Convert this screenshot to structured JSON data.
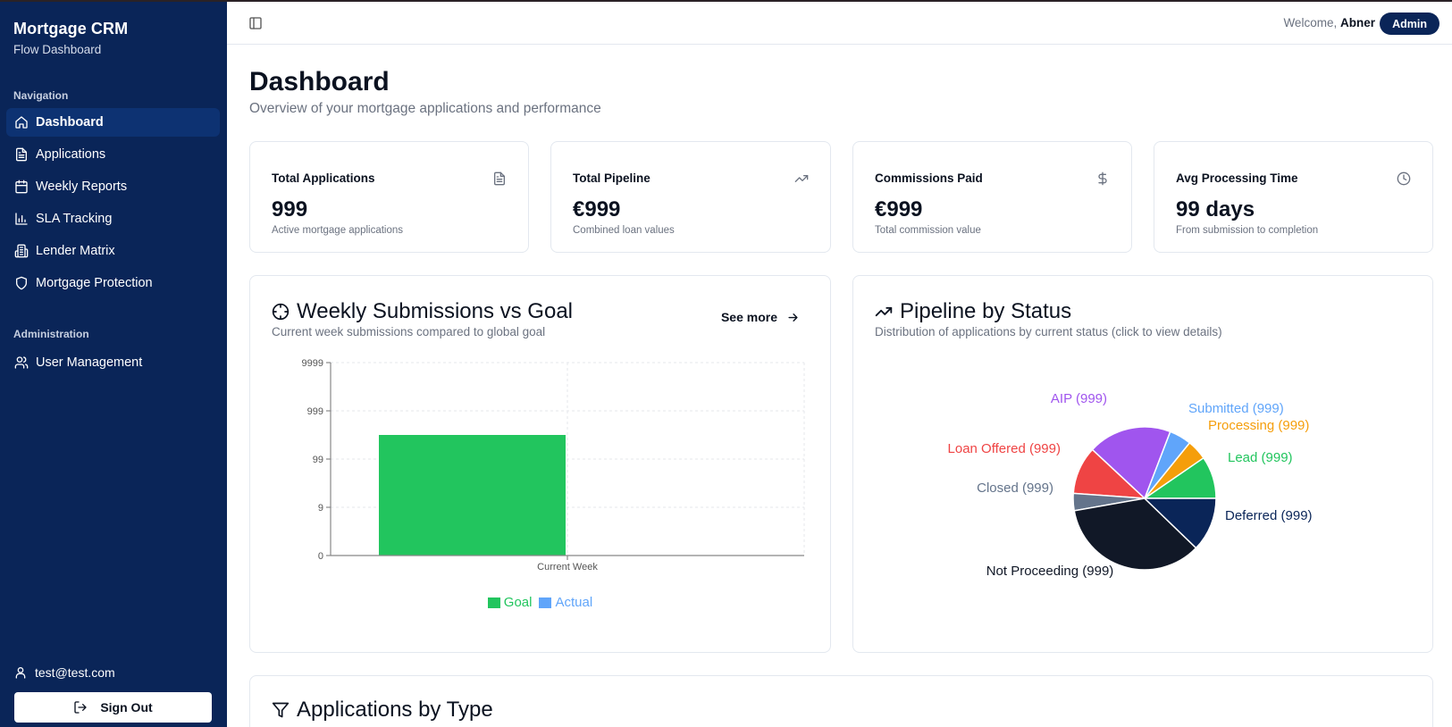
{
  "app": {
    "title": "Mortgage CRM",
    "subtitle": "Flow Dashboard"
  },
  "sidebar": {
    "nav_label": "Navigation",
    "items": [
      {
        "label": "Dashboard",
        "icon": "home-icon",
        "active": true
      },
      {
        "label": "Applications",
        "icon": "file-text-icon"
      },
      {
        "label": "Weekly Reports",
        "icon": "calendar-icon"
      },
      {
        "label": "SLA Tracking",
        "icon": "bar-chart-icon"
      },
      {
        "label": "Lender Matrix",
        "icon": "building-icon"
      },
      {
        "label": "Mortgage Protection",
        "icon": "shield-icon"
      }
    ],
    "admin_label": "Administration",
    "admin_items": [
      {
        "label": "User Management",
        "icon": "users-icon"
      }
    ],
    "user_email": "test@test.com",
    "sign_out_label": "Sign Out"
  },
  "header": {
    "welcome_prefix": "Welcome,",
    "user_name": "Abner",
    "role_badge": "Admin"
  },
  "page": {
    "title": "Dashboard",
    "subtitle": "Overview of your mortgage applications and performance"
  },
  "stats": [
    {
      "title": "Total Applications",
      "value": "999",
      "desc": "Active mortgage applications",
      "icon": "file-text-icon"
    },
    {
      "title": "Total Pipeline",
      "value": "€999",
      "desc": "Combined loan values",
      "icon": "trending-up-icon"
    },
    {
      "title": "Commissions Paid",
      "value": "€999",
      "desc": "Total commission value",
      "icon": "dollar-icon"
    },
    {
      "title": "Avg Processing Time",
      "value": "99 days",
      "desc": "From submission to completion",
      "icon": "clock-icon"
    }
  ],
  "weekly_card": {
    "title": "Weekly Submissions vs Goal",
    "subtitle": "Current week submissions compared to global goal",
    "see_more": "See more"
  },
  "pipeline_card": {
    "title": "Pipeline by Status",
    "subtitle": "Distribution of applications by current status (click to view details)"
  },
  "type_card": {
    "title": "Applications by Type"
  },
  "chart_data": [
    {
      "type": "bar",
      "title": "Weekly Submissions vs Goal",
      "categories": [
        "Current Week"
      ],
      "y_scale": "log",
      "y_ticks": [
        "0",
        "9",
        "99",
        "999",
        "9999"
      ],
      "series": [
        {
          "name": "Goal",
          "color": "#22c55e",
          "values": [
            300
          ]
        },
        {
          "name": "Actual",
          "color": "#60a5fa",
          "values": [
            0
          ]
        }
      ],
      "grid": true,
      "legend_position": "bottom"
    },
    {
      "type": "pie",
      "title": "Pipeline by Status",
      "labels_note": "all labels display (999)",
      "slices": [
        {
          "name": "Lead",
          "label": "Lead (999)",
          "color": "#22c55e",
          "share_deg": 34.5
        },
        {
          "name": "Processing",
          "label": "Processing (999)",
          "color": "#f59e0b",
          "share_deg": 16.5
        },
        {
          "name": "Submitted",
          "label": "Submitted (999)",
          "color": "#60a5fa",
          "share_deg": 18
        },
        {
          "name": "AIP",
          "label": "AIP (999)",
          "color": "#a055ee",
          "share_deg": 68
        },
        {
          "name": "Loan Offered",
          "label": "Loan Offered (999)",
          "color": "#ef4444",
          "share_deg": 39
        },
        {
          "name": "Closed",
          "label": "Closed (999)",
          "color": "#64748b",
          "share_deg": 14
        },
        {
          "name": "Not Proceeding",
          "label": "Not Proceeding (999)",
          "color": "#111827",
          "share_deg": 126
        },
        {
          "name": "Deferred",
          "label": "Deferred (999)",
          "color": "#0a2558",
          "share_deg": 44
        }
      ]
    }
  ]
}
